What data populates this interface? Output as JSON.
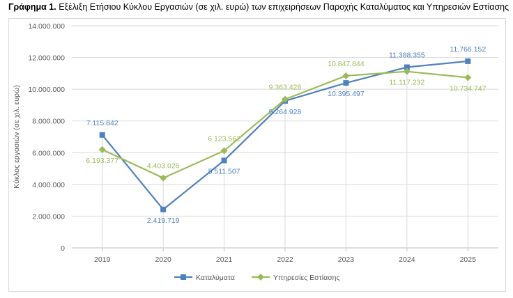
{
  "caption": {
    "prefix": "Γράφημα 1.",
    "text": " Εξέλιξη Ετήσιου Κύκλου Εργασιών (σε χιλ. ευρώ) των επιχειρήσεων Παροχής Καταλύματος και Υπηρεσιών Εστίασης"
  },
  "colors": {
    "series1": "#4f81bd",
    "series2": "#9bbb59",
    "grid": "#d9d9d9",
    "axis": "#bfbfbf"
  },
  "chart_data": {
    "type": "line",
    "title": "Εξέλιξη Ετήσιου Κύκλου Εργασιών (σε χιλ. ευρώ) των επιχειρήσεων Παροχής Καταλύματος και Υπηρεσιών Εστίασης",
    "ylabel": "Κύκλος εργασιών (σε χιλ. ευρώ)",
    "xlabel": "",
    "categories": [
      "2019",
      "2020",
      "2021",
      "2022",
      "2023",
      "2024",
      "2025"
    ],
    "ylim": [
      0,
      14000000
    ],
    "yticks": [
      0,
      2000000,
      4000000,
      6000000,
      8000000,
      10000000,
      12000000,
      14000000
    ],
    "ytick_labels": [
      "0",
      "2.000.000",
      "4.000.000",
      "6.000.000",
      "8.000.000",
      "10.000.000",
      "12.000.000",
      "14.000.000"
    ],
    "grid": "horizontal and vertical",
    "legend": "bottom",
    "series": [
      {
        "name": "Καταλύματα",
        "marker": "square",
        "values": [
          7115842,
          2419719,
          5511507,
          9264928,
          10395497,
          11388355,
          11766152
        ],
        "labels": [
          "7.115.842",
          "2.419.719",
          "5.511.507",
          "9.264.928",
          "10.395.497",
          "11.388.355",
          "11.766.152"
        ]
      },
      {
        "name": "Υπηρεσίες Εστίασης",
        "marker": "diamond",
        "values": [
          6193377,
          4403026,
          6123562,
          9363428,
          10847844,
          11117232,
          10734747
        ],
        "labels": [
          "6.193.377",
          "4.403.026",
          "6.123.562",
          "9.363.428",
          "10.847.844",
          "11.117.232",
          "10.734.747"
        ]
      }
    ]
  }
}
